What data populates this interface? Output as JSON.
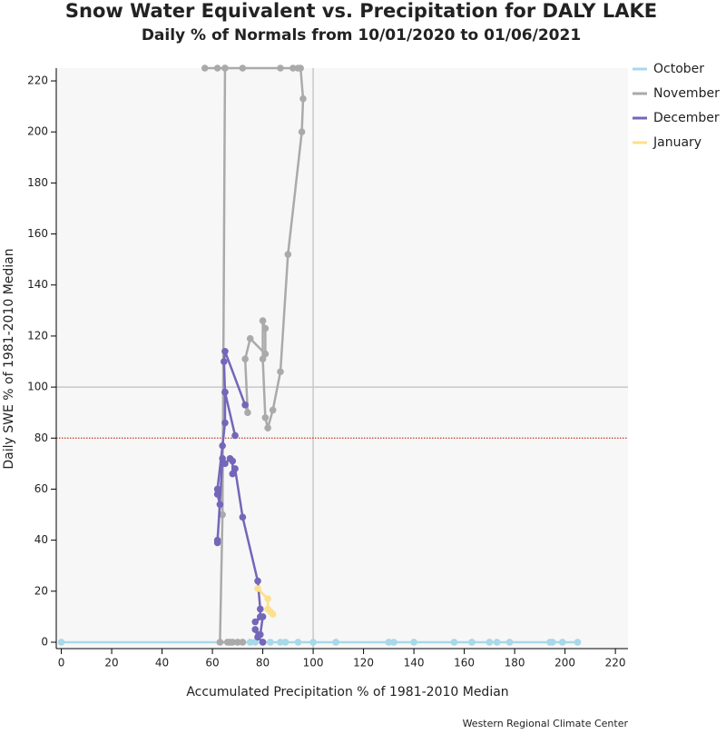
{
  "chart_data": {
    "type": "line",
    "title": "Snow Water Equivalent vs. Precipitation for DALY LAKE",
    "subtitle": "Daily % of Normals from 10/01/2020 to 01/06/2021",
    "x_label": "Accumulated Precipitation % of 1981-2010 Median",
    "y_label": "Daily SWE % of 1981-2010 Median",
    "source": "Western Regional Climate Center",
    "xlim": [
      -2,
      225
    ],
    "ylim": [
      -2.5,
      225
    ],
    "xticks": [
      0,
      20,
      40,
      60,
      80,
      100,
      120,
      140,
      160,
      180,
      200,
      220
    ],
    "yticks": [
      0,
      20,
      40,
      60,
      80,
      100,
      120,
      140,
      160,
      180,
      200,
      220
    ],
    "reference_lines": [
      {
        "axis": "x",
        "value": 100,
        "color": "#c8c8c8",
        "style": "solid"
      },
      {
        "axis": "y",
        "value": 100,
        "color": "#c8c8c8",
        "style": "solid"
      },
      {
        "axis": "y",
        "value": 80,
        "color": "#c0392b",
        "style": "dotted"
      }
    ],
    "series": [
      {
        "name": "October",
        "color": "#a8d8ea",
        "x": [
          0,
          75,
          77,
          80,
          83,
          87,
          89,
          94,
          100,
          109,
          130,
          132,
          140,
          156,
          163,
          170,
          173,
          178,
          194,
          195,
          199,
          205
        ],
        "values": [
          0,
          0,
          0,
          0,
          0,
          0,
          0,
          0,
          0,
          0,
          0,
          0,
          0,
          0,
          0,
          0,
          0,
          0,
          0,
          0,
          0,
          0
        ]
      },
      {
        "name": "November",
        "color": "#aaaaaa",
        "x": [
          72,
          70,
          68,
          67,
          66,
          63,
          64,
          65,
          62,
          57,
          65,
          72,
          87,
          92,
          94,
          95,
          96,
          95.5,
          90,
          87,
          84,
          82,
          81,
          80,
          80,
          81,
          81,
          75,
          73,
          74,
          73
        ],
        "values": [
          0,
          0,
          0,
          0,
          0,
          0,
          50,
          225,
          225,
          225,
          225,
          225,
          225,
          225,
          225,
          225,
          213,
          200,
          152,
          106,
          91,
          84,
          88,
          111,
          126,
          123,
          113,
          119,
          111,
          90,
          93
        ]
      },
      {
        "name": "December",
        "color": "#7466b8",
        "x": [
          73,
          65,
          64.6,
          65,
          69,
          65,
          65,
          64,
          62,
          62,
          63,
          62,
          62,
          64,
          65,
          67,
          68,
          68,
          69,
          72,
          78,
          79,
          79,
          77,
          80,
          79,
          77,
          78,
          80
        ],
        "values": [
          93,
          114,
          110,
          98,
          81,
          98,
          86,
          77,
          60,
          58,
          54,
          40,
          39,
          72,
          70,
          72,
          71,
          66,
          68,
          49,
          24,
          13,
          10,
          8,
          10,
          3,
          5,
          2,
          0
        ]
      },
      {
        "name": "January",
        "color": "#fde08c",
        "x": [
          78,
          82,
          82,
          83,
          84
        ],
        "values": [
          21,
          17,
          13,
          12,
          11
        ]
      }
    ]
  }
}
